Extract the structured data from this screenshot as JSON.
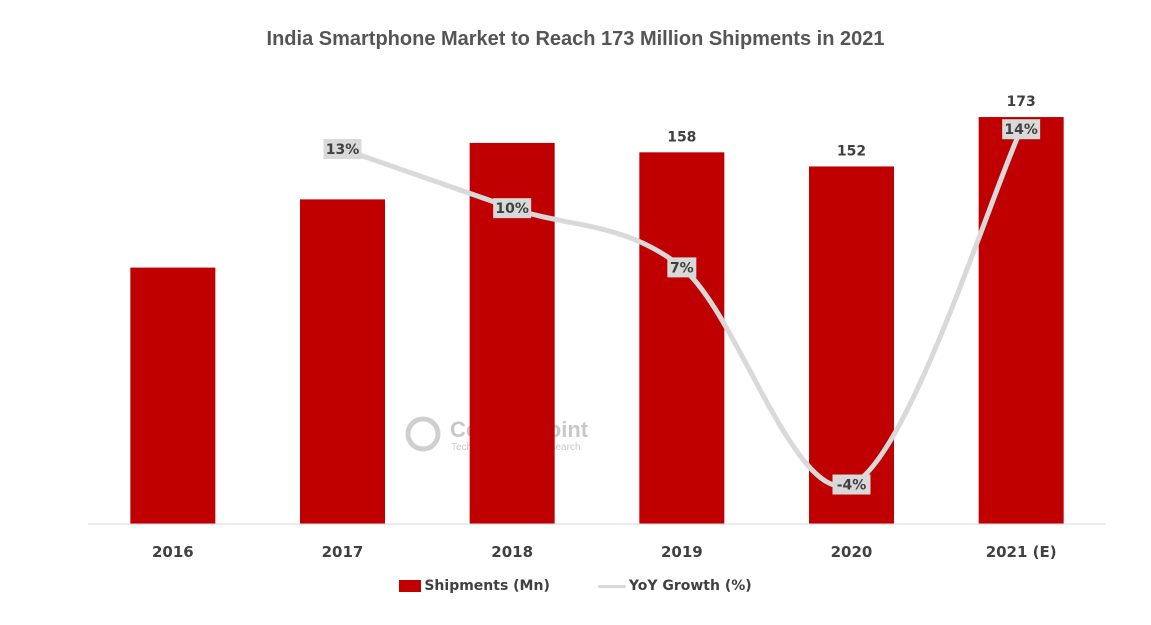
{
  "chart_data": {
    "type": "bar",
    "title": "India Smartphone Market to Reach 173 Million Shipments in 2021",
    "categories": [
      "2016",
      "2017",
      "2018",
      "2019",
      "2020",
      "2021 (E)"
    ],
    "series": [
      {
        "name": "Shipments (Mn)",
        "type": "bar",
        "values": [
          109,
          138,
          162,
          158,
          152,
          173
        ],
        "data_labels": [
          null,
          null,
          null,
          "158",
          "152",
          "173"
        ]
      },
      {
        "name": "YoY Growth (%)",
        "type": "line",
        "values": [
          null,
          13,
          10,
          7,
          -4,
          14
        ],
        "data_labels": [
          null,
          "13%",
          "10%",
          "7%",
          "-4%",
          "14%"
        ]
      }
    ],
    "ylim": [
      0,
      193
    ],
    "growth_ylim": [
      -6,
      17
    ],
    "xlabel": "",
    "ylabel": "",
    "grid": false,
    "legend_position": "bottom"
  },
  "colors": {
    "bar": "#c00000",
    "line": "#d9d9d9",
    "label_box": "#d9d9d9",
    "text": "#404040"
  },
  "watermark": {
    "name": "Counterpoint",
    "tagline": "Technology Market Research"
  }
}
